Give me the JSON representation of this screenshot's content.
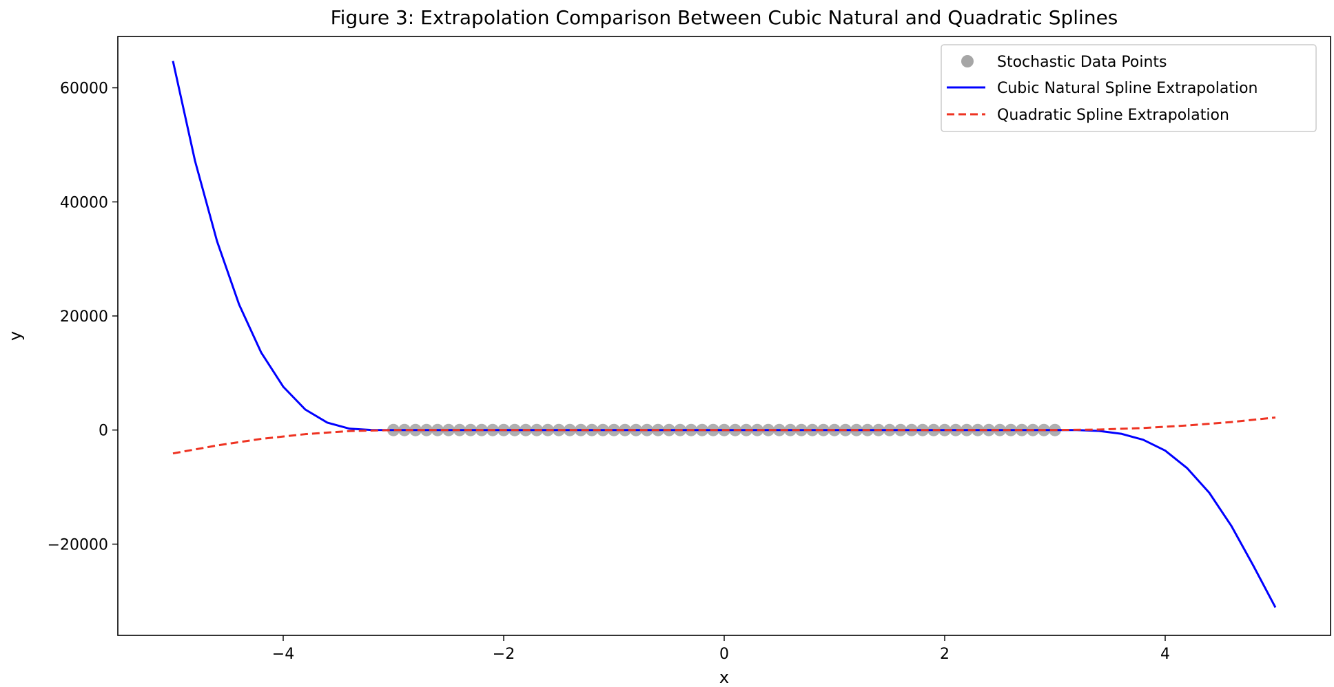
{
  "chart_data": {
    "type": "line",
    "title": "Figure 3: Extrapolation Comparison Between Cubic Natural and Quadratic Splines",
    "xlabel": "x",
    "ylabel": "y",
    "xlim": [
      -5.5,
      5.5
    ],
    "ylim": [
      -36000,
      69000
    ],
    "xticks": [
      -4,
      -2,
      0,
      2,
      4
    ],
    "xtick_labels": [
      "−4",
      "−2",
      "0",
      "2",
      "4"
    ],
    "yticks": [
      -20000,
      0,
      20000,
      40000,
      60000
    ],
    "ytick_labels": [
      "−20000",
      "0",
      "20000",
      "40000",
      "60000"
    ],
    "grid": false,
    "legend_position": "top-right",
    "legend": [
      {
        "label": "Stochastic Data Points",
        "marker": "circle"
      },
      {
        "label": "Cubic Natural Spline Extrapolation",
        "style": "solid"
      },
      {
        "label": "Quadratic Spline Extrapolation",
        "style": "dashed"
      }
    ],
    "scatter": {
      "name": "Stochastic Data Points",
      "color": "#a6a6a6",
      "x": [
        -3.0,
        -2.9,
        -2.8,
        -2.7,
        -2.6,
        -2.5,
        -2.4,
        -2.3,
        -2.2,
        -2.1,
        -2.0,
        -1.9,
        -1.8,
        -1.7,
        -1.6,
        -1.5,
        -1.4,
        -1.3,
        -1.2,
        -1.1,
        -1.0,
        -0.9,
        -0.8,
        -0.7,
        -0.6,
        -0.5,
        -0.4,
        -0.3,
        -0.2,
        -0.1,
        0.0,
        0.1,
        0.2,
        0.3,
        0.4,
        0.5,
        0.6,
        0.7,
        0.8,
        0.9,
        1.0,
        1.1,
        1.2,
        1.3,
        1.4,
        1.5,
        1.6,
        1.7,
        1.8,
        1.9,
        2.0,
        2.1,
        2.2,
        2.3,
        2.4,
        2.5,
        2.6,
        2.7,
        2.8,
        2.9,
        3.0
      ],
      "y": [
        0,
        0,
        0,
        0,
        0,
        0,
        0,
        0,
        0,
        0,
        0,
        0,
        0,
        0,
        0,
        0,
        0,
        0,
        0,
        0,
        0,
        0,
        0,
        0,
        0,
        0,
        0,
        0,
        0,
        0,
        0,
        0,
        0,
        0,
        0,
        0,
        0,
        0,
        0,
        0,
        0,
        0,
        0,
        0,
        0,
        0,
        0,
        0,
        0,
        0,
        0,
        0,
        0,
        0,
        0,
        0,
        0,
        0,
        0,
        0,
        0
      ]
    },
    "series": [
      {
        "name": "Cubic Natural Spline Extrapolation",
        "color": "#0000ff",
        "style": "solid",
        "x": [
          -5.0,
          -4.8,
          -4.6,
          -4.4,
          -4.2,
          -4.0,
          -3.8,
          -3.6,
          -3.4,
          -3.2,
          -3.0,
          -2.0,
          -1.0,
          0.0,
          1.0,
          2.0,
          3.0,
          3.2,
          3.4,
          3.6,
          3.8,
          4.0,
          4.2,
          4.4,
          4.6,
          4.8,
          5.0
        ],
        "y": [
          64700,
          47200,
          33100,
          22000,
          13600,
          7600,
          3600,
          1300,
          250,
          15,
          0,
          0,
          0,
          0,
          0,
          0,
          0,
          -10,
          -160,
          -650,
          -1700,
          -3600,
          -6700,
          -11000,
          -16800,
          -23800,
          -31100
        ]
      },
      {
        "name": "Quadratic Spline Extrapolation",
        "color": "#ee3322",
        "style": "dashed",
        "x": [
          -5.0,
          -4.6,
          -4.2,
          -3.8,
          -3.4,
          -3.0,
          -2.0,
          -1.0,
          0.0,
          1.0,
          2.0,
          3.0,
          3.4,
          3.8,
          4.2,
          4.6,
          5.0
        ],
        "y": [
          -4100,
          -2700,
          -1550,
          -720,
          -180,
          0,
          0,
          0,
          0,
          0,
          0,
          0,
          90,
          350,
          800,
          1400,
          2200
        ]
      }
    ]
  }
}
